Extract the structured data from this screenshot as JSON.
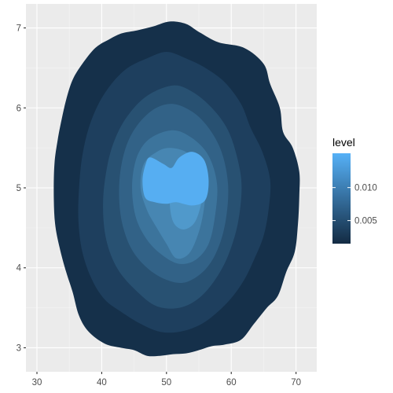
{
  "chart_data": {
    "type": "filled-density-contour",
    "title": "",
    "xlabel": "",
    "ylabel": "",
    "xlim": [
      28.3,
      73.2
    ],
    "ylim": [
      2.7,
      7.3
    ],
    "x_ticks": [
      30,
      40,
      50,
      60,
      70
    ],
    "y_ticks": [
      3,
      4,
      5,
      6,
      7
    ],
    "grid": true,
    "legend": {
      "title": "level",
      "placement": "right",
      "tick_values": [
        0.005,
        0.01
      ],
      "tick_labels": [
        "0.005",
        "0.010"
      ],
      "range": [
        0.0015,
        0.0152
      ],
      "color_low": "#132b43",
      "color_high": "#56b1f7"
    },
    "contour_levels": [
      {
        "level": 0.002,
        "color": "#15304a",
        "points": [
          [
            55,
            6.95
          ],
          [
            58,
            6.82
          ],
          [
            62,
            6.75
          ],
          [
            65,
            6.55
          ],
          [
            66,
            6.3
          ],
          [
            67.5,
            6.0
          ],
          [
            68,
            5.7
          ],
          [
            69.5,
            5.5
          ],
          [
            70.5,
            5.2
          ],
          [
            70.5,
            4.9
          ],
          [
            70.3,
            4.55
          ],
          [
            69.8,
            4.2
          ],
          [
            68.5,
            3.95
          ],
          [
            67.2,
            3.65
          ],
          [
            65.5,
            3.5
          ],
          [
            63.5,
            3.3
          ],
          [
            61.5,
            3.1
          ],
          [
            59,
            3.04
          ],
          [
            57,
            3.02
          ],
          [
            55,
            2.97
          ],
          [
            53,
            2.93
          ],
          [
            51,
            2.92
          ],
          [
            49,
            2.9
          ],
          [
            47,
            2.9
          ],
          [
            45,
            2.97
          ],
          [
            43,
            3.0
          ],
          [
            40.5,
            3.05
          ],
          [
            38,
            3.2
          ],
          [
            36.5,
            3.4
          ],
          [
            35.5,
            3.7
          ],
          [
            34.5,
            3.95
          ],
          [
            33.5,
            4.25
          ],
          [
            32.8,
            4.55
          ],
          [
            32.6,
            4.9
          ],
          [
            32.7,
            5.3
          ],
          [
            33.2,
            5.6
          ],
          [
            33.8,
            5.85
          ],
          [
            34.5,
            6.1
          ],
          [
            35.5,
            6.35
          ],
          [
            37,
            6.55
          ],
          [
            39,
            6.75
          ],
          [
            41,
            6.85
          ],
          [
            43,
            6.93
          ],
          [
            45.5,
            6.97
          ],
          [
            48,
            7.02
          ],
          [
            50.5,
            7.08
          ],
          [
            53,
            7.05
          ]
        ]
      },
      {
        "level": 0.004,
        "color": "#1e3f5e",
        "points": [
          [
            50,
            6.7
          ],
          [
            53,
            6.62
          ],
          [
            56,
            6.5
          ],
          [
            59,
            6.32
          ],
          [
            61.5,
            6.05
          ],
          [
            63,
            5.75
          ],
          [
            64.8,
            5.45
          ],
          [
            66,
            5.1
          ],
          [
            65.8,
            4.75
          ],
          [
            65,
            4.4
          ],
          [
            63.5,
            4.1
          ],
          [
            62,
            3.85
          ],
          [
            60,
            3.62
          ],
          [
            57.5,
            3.42
          ],
          [
            55,
            3.28
          ],
          [
            52,
            3.2
          ],
          [
            49,
            3.2
          ],
          [
            46,
            3.3
          ],
          [
            43,
            3.45
          ],
          [
            40.5,
            3.6
          ],
          [
            38.5,
            3.85
          ],
          [
            37,
            4.2
          ],
          [
            36.4,
            4.6
          ],
          [
            36.5,
            5.0
          ],
          [
            37,
            5.4
          ],
          [
            38,
            5.75
          ],
          [
            39.5,
            6.05
          ],
          [
            41.5,
            6.3
          ],
          [
            44,
            6.5
          ],
          [
            47,
            6.62
          ]
        ]
      },
      {
        "level": 0.006,
        "color": "#285172",
        "points": [
          [
            51,
            6.28
          ],
          [
            54,
            6.2
          ],
          [
            57,
            6.0
          ],
          [
            59.5,
            5.72
          ],
          [
            61,
            5.35
          ],
          [
            61.6,
            5.0
          ],
          [
            61,
            4.55
          ],
          [
            59.5,
            4.15
          ],
          [
            57.5,
            3.85
          ],
          [
            55,
            3.62
          ],
          [
            52,
            3.5
          ],
          [
            48.5,
            3.52
          ],
          [
            45.5,
            3.7
          ],
          [
            42.5,
            3.98
          ],
          [
            40.7,
            4.35
          ],
          [
            40.2,
            4.8
          ],
          [
            40.8,
            5.25
          ],
          [
            42,
            5.6
          ],
          [
            44,
            5.9
          ],
          [
            47,
            6.15
          ]
        ]
      },
      {
        "level": 0.008,
        "color": "#326287",
        "points": [
          [
            51,
            6.05
          ],
          [
            54,
            5.95
          ],
          [
            56.5,
            5.75
          ],
          [
            58.5,
            5.45
          ],
          [
            59.5,
            5.05
          ],
          [
            59.2,
            4.62
          ],
          [
            58,
            4.25
          ],
          [
            56,
            3.98
          ],
          [
            53,
            3.82
          ],
          [
            50,
            3.85
          ],
          [
            47,
            4.0
          ],
          [
            44.5,
            4.25
          ],
          [
            43,
            4.62
          ],
          [
            42.7,
            5.05
          ],
          [
            43.5,
            5.45
          ],
          [
            45.2,
            5.75
          ],
          [
            48,
            5.98
          ]
        ]
      },
      {
        "level": 0.01,
        "color": "#3c749c",
        "points": [
          [
            51,
            5.72
          ],
          [
            54,
            5.62
          ],
          [
            56.5,
            5.4
          ],
          [
            57.8,
            5.05
          ],
          [
            57.5,
            4.65
          ],
          [
            56.5,
            4.3
          ],
          [
            54.5,
            4.1
          ],
          [
            52,
            4.05
          ],
          [
            49.5,
            4.15
          ],
          [
            47,
            4.35
          ],
          [
            45.2,
            4.65
          ],
          [
            44.7,
            5.05
          ],
          [
            45.5,
            5.4
          ],
          [
            47.5,
            5.62
          ]
        ]
      },
      {
        "level": 0.012,
        "color": "#4786b2",
        "points": [
          [
            50.5,
            5.5
          ],
          [
            53,
            5.45
          ],
          [
            55,
            5.3
          ],
          [
            56,
            5.05
          ],
          [
            55.8,
            4.75
          ],
          [
            55,
            4.45
          ],
          [
            53.5,
            4.18
          ],
          [
            51.5,
            4.12
          ],
          [
            50,
            4.3
          ],
          [
            48.5,
            4.5
          ],
          [
            47,
            4.72
          ],
          [
            46,
            5.0
          ],
          [
            46.5,
            5.3
          ],
          [
            48.5,
            5.45
          ]
        ]
      },
      {
        "level": 0.014,
        "color": "#5099cb",
        "points": [
          [
            52.5,
            5.38
          ],
          [
            55,
            5.25
          ],
          [
            55.6,
            5.0
          ],
          [
            55.2,
            4.75
          ],
          [
            54.2,
            4.55
          ],
          [
            52.5,
            4.48
          ],
          [
            51,
            4.58
          ],
          [
            50.5,
            4.85
          ],
          [
            51,
            5.15
          ]
        ]
      },
      {
        "level": 0.015,
        "color": "#56aef2",
        "points": [
          [
            47.5,
            5.38
          ],
          [
            49.5,
            5.3
          ],
          [
            50.8,
            5.25
          ],
          [
            52,
            5.38
          ],
          [
            54,
            5.45
          ],
          [
            55.8,
            5.35
          ],
          [
            56.5,
            5.1
          ],
          [
            56,
            4.85
          ],
          [
            54,
            4.78
          ],
          [
            51.5,
            4.82
          ],
          [
            50,
            4.8
          ],
          [
            48.2,
            4.82
          ],
          [
            46.7,
            4.88
          ],
          [
            46.3,
            5.1
          ],
          [
            46.8,
            5.3
          ]
        ]
      }
    ]
  }
}
